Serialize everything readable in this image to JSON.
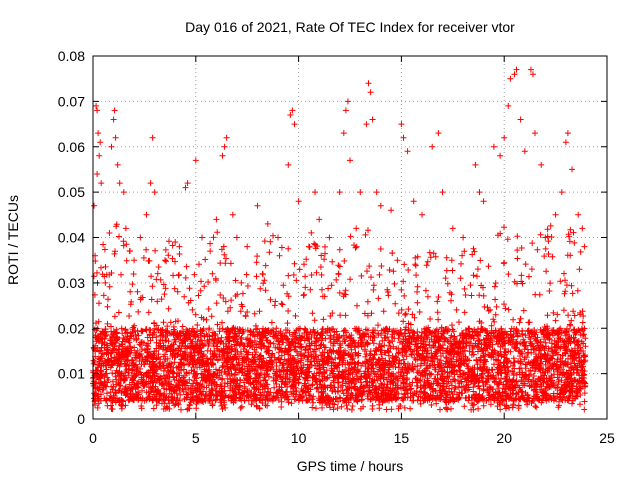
{
  "chart_data": {
    "type": "scatter",
    "title": "Day 016 of 2021, Rate Of TEC Index for receiver vtor",
    "xlabel": "GPS time / hours",
    "ylabel": "ROTI / TECUs",
    "xlim": [
      0,
      25
    ],
    "ylim": [
      0,
      0.08
    ],
    "x_ticks": [
      0,
      5,
      10,
      15,
      20,
      25
    ],
    "y_ticks": [
      0,
      0.01,
      0.02,
      0.03,
      0.04,
      0.05,
      0.06,
      0.07,
      0.08
    ],
    "x_tick_labels": [
      "0",
      "5",
      "10",
      "15",
      "20",
      "25"
    ],
    "y_tick_labels": [
      "0",
      "0.01",
      "0.02",
      "0.03",
      "0.04",
      "0.05",
      "0.06",
      "0.07",
      "0.08"
    ],
    "grid": true,
    "marker": "plus",
    "marker_color": "#ff0000",
    "series": [
      {
        "points": [
          [
            0.05,
            0.047
          ],
          [
            0.1,
            0.036
          ],
          [
            0.15,
            0.069
          ],
          [
            0.2,
            0.068
          ],
          [
            0.25,
            0.063
          ],
          [
            0.3,
            0.058
          ],
          [
            0.35,
            0.061
          ],
          [
            0.2,
            0.054
          ],
          [
            0.4,
            0.052
          ],
          [
            0.6,
            0.03
          ],
          [
            0.8,
            0.041
          ],
          [
            0.9,
            0.06
          ],
          [
            1.0,
            0.066
          ],
          [
            1.05,
            0.068
          ],
          [
            1.1,
            0.062
          ],
          [
            1.2,
            0.056
          ],
          [
            1.3,
            0.052
          ],
          [
            1.5,
            0.05
          ],
          [
            1.6,
            0.042
          ],
          [
            1.8,
            0.037
          ],
          [
            2.0,
            0.035
          ],
          [
            2.3,
            0.04
          ],
          [
            2.6,
            0.045
          ],
          [
            2.8,
            0.052
          ],
          [
            2.9,
            0.062
          ],
          [
            3.0,
            0.05
          ],
          [
            3.5,
            0.035
          ],
          [
            4.0,
            0.039
          ],
          [
            4.2,
            0.038
          ],
          [
            4.5,
            0.051
          ],
          [
            4.6,
            0.052
          ],
          [
            5.0,
            0.057
          ],
          [
            5.3,
            0.04
          ],
          [
            5.7,
            0.037
          ],
          [
            6.0,
            0.044
          ],
          [
            6.3,
            0.058
          ],
          [
            6.4,
            0.06
          ],
          [
            6.5,
            0.062
          ],
          [
            6.8,
            0.045
          ],
          [
            7.0,
            0.04
          ],
          [
            7.5,
            0.038
          ],
          [
            8.0,
            0.047
          ],
          [
            8.5,
            0.043
          ],
          [
            9.0,
            0.04
          ],
          [
            9.5,
            0.056
          ],
          [
            9.6,
            0.067
          ],
          [
            9.7,
            0.068
          ],
          [
            9.8,
            0.065
          ],
          [
            10.0,
            0.048
          ],
          [
            10.5,
            0.038
          ],
          [
            10.8,
            0.05
          ],
          [
            11.0,
            0.044
          ],
          [
            11.5,
            0.04
          ],
          [
            12.0,
            0.05
          ],
          [
            12.2,
            0.063
          ],
          [
            12.3,
            0.068
          ],
          [
            12.4,
            0.07
          ],
          [
            12.5,
            0.057
          ],
          [
            12.8,
            0.042
          ],
          [
            13.0,
            0.05
          ],
          [
            13.3,
            0.065
          ],
          [
            13.4,
            0.074
          ],
          [
            13.5,
            0.072
          ],
          [
            13.6,
            0.066
          ],
          [
            13.8,
            0.05
          ],
          [
            14.0,
            0.047
          ],
          [
            14.5,
            0.046
          ],
          [
            15.0,
            0.065
          ],
          [
            15.1,
            0.062
          ],
          [
            15.3,
            0.059
          ],
          [
            15.6,
            0.048
          ],
          [
            16.0,
            0.045
          ],
          [
            16.5,
            0.06
          ],
          [
            16.8,
            0.063
          ],
          [
            17.0,
            0.05
          ],
          [
            17.5,
            0.042
          ],
          [
            18.0,
            0.04
          ],
          [
            18.6,
            0.056
          ],
          [
            18.8,
            0.05
          ],
          [
            19.0,
            0.048
          ],
          [
            19.5,
            0.06
          ],
          [
            19.8,
            0.058
          ],
          [
            20.0,
            0.062
          ],
          [
            20.2,
            0.069
          ],
          [
            20.3,
            0.075
          ],
          [
            20.5,
            0.076
          ],
          [
            20.6,
            0.077
          ],
          [
            20.8,
            0.066
          ],
          [
            21.0,
            0.059
          ],
          [
            21.3,
            0.077
          ],
          [
            21.4,
            0.076
          ],
          [
            21.5,
            0.063
          ],
          [
            21.8,
            0.056
          ],
          [
            22.0,
            0.04
          ],
          [
            22.5,
            0.045
          ],
          [
            22.8,
            0.05
          ],
          [
            23.0,
            0.061
          ],
          [
            23.1,
            0.063
          ],
          [
            23.3,
            0.055
          ],
          [
            23.6,
            0.045
          ],
          [
            23.8,
            0.042
          ],
          [
            23.9,
            0.038
          ]
        ]
      }
    ],
    "bulk": {
      "x_range": [
        0,
        23.95
      ],
      "y_min": 0.002,
      "y_typical_range": [
        0.004,
        0.02
      ],
      "y_envelope_by_hour": [
        [
          0,
          0.035
        ],
        [
          1,
          0.045
        ],
        [
          2,
          0.035
        ],
        [
          3,
          0.04
        ],
        [
          4,
          0.04
        ],
        [
          5,
          0.033
        ],
        [
          6,
          0.042
        ],
        [
          7,
          0.035
        ],
        [
          8,
          0.038
        ],
        [
          9,
          0.042
        ],
        [
          10,
          0.04
        ],
        [
          11,
          0.042
        ],
        [
          12,
          0.043
        ],
        [
          13,
          0.045
        ],
        [
          14,
          0.038
        ],
        [
          15,
          0.036
        ],
        [
          16,
          0.038
        ],
        [
          17,
          0.036
        ],
        [
          18,
          0.04
        ],
        [
          19,
          0.042
        ],
        [
          20,
          0.045
        ],
        [
          21,
          0.04
        ],
        [
          22,
          0.042
        ],
        [
          23,
          0.045
        ],
        [
          24,
          0.035
        ]
      ]
    }
  }
}
